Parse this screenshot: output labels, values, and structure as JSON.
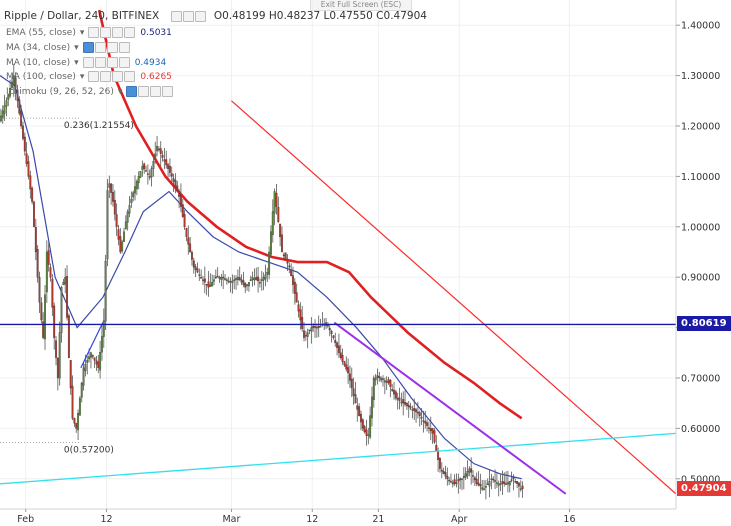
{
  "header": {
    "symbol_line": "Ripple / Dollar, 240, BITFINEX",
    "ohlc": {
      "o_label": "O",
      "o": "0.48199",
      "h_label": "H",
      "h": "0.48237",
      "l_label": "L",
      "l": "0.47550",
      "c_label": "C",
      "c": "0.47904"
    },
    "exit_fullscreen": "Exit Full Screen (ESC)"
  },
  "indicators": [
    {
      "label": "EMA (55, close)",
      "value": "0.5031",
      "color": "#1a237e"
    },
    {
      "label": "MA (34, close)",
      "value": "",
      "color": "#7e57c2"
    },
    {
      "label": "MA (10, close)",
      "value": "0.4934",
      "color": "#1565c0"
    },
    {
      "label": "MA (100, close)",
      "value": "0.6265",
      "color": "#e53935"
    },
    {
      "label": "Ichimoku (9, 26, 52, 26)",
      "value": "",
      "color": "#26a69a"
    }
  ],
  "price_badges": {
    "horizontal_line": {
      "value": "0.80619",
      "color": "#1a1aa6"
    },
    "last_price": {
      "value": "0.47904",
      "color": "#e53935"
    }
  },
  "fib_labels": {
    "upper": "0.236(1.21554)",
    "lower": "0(0.57200)"
  },
  "chart_data": {
    "type": "candlestick",
    "title": "Ripple / Dollar, 240, BITFINEX",
    "ylim": [
      0.44,
      1.45
    ],
    "y_ticks": [
      1.4,
      1.3,
      1.2,
      1.1,
      1.0,
      0.9,
      0.8,
      0.7,
      0.6,
      0.5
    ],
    "y_tick_labels": [
      "1.40000",
      "1.30000",
      "1.20000",
      "1.10000",
      "1.00000",
      "0.90000",
      "0.80000",
      "0.70000",
      "0.60000",
      "0.50000"
    ],
    "x_ticks": [
      {
        "label": "Feb",
        "day": 0
      },
      {
        "label": "12",
        "day": 11
      },
      {
        "label": "Mar",
        "day": 28
      },
      {
        "label": "12",
        "day": 39
      },
      {
        "label": "21",
        "day": 48
      },
      {
        "label": "Apr",
        "day": 59
      },
      {
        "label": "16",
        "day": 74
      }
    ],
    "x_range_days": [
      -3.5,
      88.5
    ],
    "close_path": [
      [
        -3.5,
        1.21
      ],
      [
        -2.5,
        1.25
      ],
      [
        -1.5,
        1.3
      ],
      [
        -0.5,
        1.2
      ],
      [
        0.5,
        1.1
      ],
      [
        1.0,
        1.05
      ],
      [
        1.5,
        0.95
      ],
      [
        2.0,
        0.85
      ],
      [
        2.5,
        0.78
      ],
      [
        3.0,
        0.95
      ],
      [
        3.5,
        0.9
      ],
      [
        4.0,
        0.78
      ],
      [
        4.5,
        0.7
      ],
      [
        5.0,
        0.88
      ],
      [
        5.5,
        0.9
      ],
      [
        6.0,
        0.74
      ],
      [
        6.5,
        0.62
      ],
      [
        7.0,
        0.6
      ],
      [
        7.5,
        0.66
      ],
      [
        8.0,
        0.72
      ],
      [
        9.0,
        0.75
      ],
      [
        10.0,
        0.72
      ],
      [
        10.8,
        0.82
      ],
      [
        11.3,
        1.1
      ],
      [
        12.0,
        1.05
      ],
      [
        13.0,
        0.95
      ],
      [
        14.0,
        1.03
      ],
      [
        15.0,
        1.08
      ],
      [
        16.0,
        1.12
      ],
      [
        17.0,
        1.1
      ],
      [
        18.0,
        1.16
      ],
      [
        19.0,
        1.13
      ],
      [
        20.0,
        1.1
      ],
      [
        21.0,
        1.06
      ],
      [
        22.0,
        0.98
      ],
      [
        23.0,
        0.92
      ],
      [
        24.0,
        0.9
      ],
      [
        25.0,
        0.88
      ],
      [
        26.0,
        0.9
      ],
      [
        27.0,
        0.9
      ],
      [
        28.0,
        0.89
      ],
      [
        29.0,
        0.9
      ],
      [
        30.0,
        0.88
      ],
      [
        31.0,
        0.9
      ],
      [
        32.0,
        0.89
      ],
      [
        33.0,
        0.91
      ],
      [
        34.0,
        1.07
      ],
      [
        35.0,
        0.95
      ],
      [
        36.0,
        0.92
      ],
      [
        37.0,
        0.85
      ],
      [
        38.0,
        0.78
      ],
      [
        39.0,
        0.8
      ],
      [
        40.0,
        0.8
      ],
      [
        41.0,
        0.81
      ],
      [
        42.0,
        0.78
      ],
      [
        43.0,
        0.74
      ],
      [
        44.0,
        0.71
      ],
      [
        45.0,
        0.65
      ],
      [
        46.0,
        0.6
      ],
      [
        46.7,
        0.58
      ],
      [
        47.5,
        0.7
      ],
      [
        48.5,
        0.7
      ],
      [
        49.5,
        0.69
      ],
      [
        50.5,
        0.66
      ],
      [
        51.5,
        0.65
      ],
      [
        52.5,
        0.64
      ],
      [
        53.5,
        0.63
      ],
      [
        54.5,
        0.61
      ],
      [
        55.5,
        0.59
      ],
      [
        56.5,
        0.52
      ],
      [
        57.5,
        0.5
      ],
      [
        58.5,
        0.49
      ],
      [
        59.5,
        0.5
      ],
      [
        60.5,
        0.52
      ],
      [
        61.5,
        0.49
      ],
      [
        62.5,
        0.48
      ],
      [
        63.5,
        0.5
      ],
      [
        64.5,
        0.49
      ],
      [
        65.5,
        0.49
      ],
      [
        66.5,
        0.5
      ],
      [
        67.5,
        0.48
      ]
    ],
    "ema55_path": [
      [
        -3.5,
        1.3
      ],
      [
        -1.5,
        1.28
      ],
      [
        1.0,
        1.15
      ],
      [
        4.0,
        0.9
      ],
      [
        7.0,
        0.8
      ],
      [
        10.5,
        0.86
      ],
      [
        13.5,
        0.95
      ],
      [
        16.0,
        1.03
      ],
      [
        19.5,
        1.07
      ],
      [
        22.0,
        1.03
      ],
      [
        25.5,
        0.98
      ],
      [
        29.0,
        0.95
      ],
      [
        33.0,
        0.93
      ],
      [
        37.0,
        0.91
      ],
      [
        41.0,
        0.86
      ],
      [
        45.0,
        0.8
      ],
      [
        48.5,
        0.74
      ],
      [
        52.5,
        0.66
      ],
      [
        57.0,
        0.58
      ],
      [
        61.0,
        0.53
      ],
      [
        64.5,
        0.51
      ],
      [
        67.5,
        0.5
      ]
    ],
    "ma100_path": [
      [
        10.0,
        1.43
      ],
      [
        12.0,
        1.3
      ],
      [
        15.0,
        1.2
      ],
      [
        19.0,
        1.1
      ],
      [
        22.0,
        1.05
      ],
      [
        26.0,
        1.0
      ],
      [
        30.0,
        0.96
      ],
      [
        33.5,
        0.94
      ],
      [
        37.0,
        0.93
      ],
      [
        41.0,
        0.93
      ],
      [
        44.0,
        0.91
      ],
      [
        47.0,
        0.86
      ],
      [
        52.0,
        0.79
      ],
      [
        57.0,
        0.73
      ],
      [
        61.0,
        0.69
      ],
      [
        64.5,
        0.65
      ],
      [
        67.5,
        0.62
      ]
    ],
    "drawings": {
      "resistance_line": [
        [
          28.0,
          1.25
        ],
        [
          88.5,
          0.47
        ]
      ],
      "support_line": [
        [
          -3.5,
          0.49
        ],
        [
          88.5,
          0.59
        ]
      ],
      "short_trendline": [
        [
          42.0,
          0.81
        ],
        [
          73.5,
          0.47
        ]
      ],
      "horizontal_line_price": 0.80619,
      "fib_upper_price": 1.21554,
      "fib_lower_price": 0.572,
      "rally_line": [
        [
          7.5,
          0.72
        ],
        [
          10.5,
          0.81
        ]
      ]
    }
  }
}
